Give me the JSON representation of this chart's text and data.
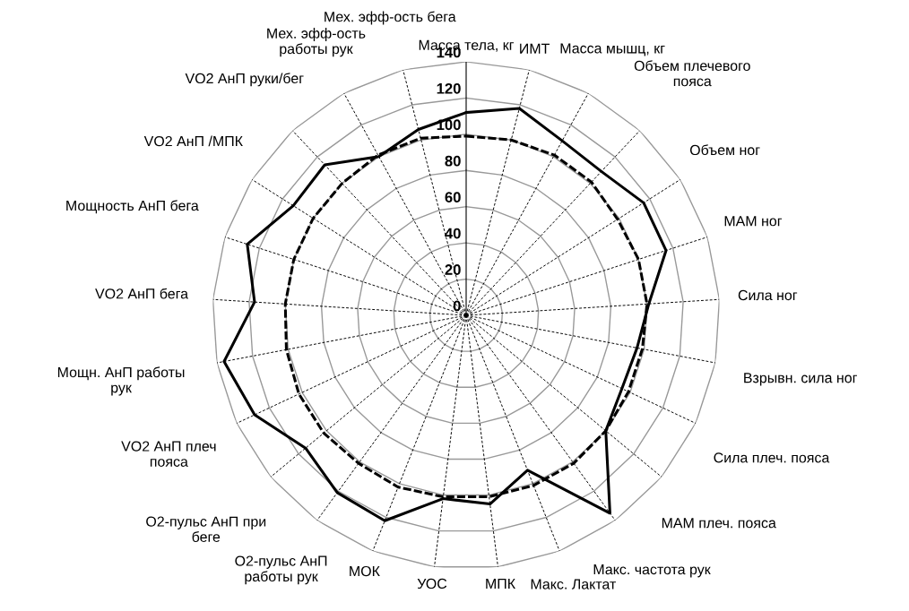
{
  "chart_data": {
    "type": "radar",
    "categories": [
      "Масса тела, кг",
      "ИМТ",
      "Масса мышц, кг",
      "Объем плечевого\nпояса",
      "Объем ног",
      "МАМ ног",
      "Сила ног",
      "Взрывн. сила ног",
      "Сила плеч. пояса",
      "МАМ плеч. пояса",
      "Макс. частота рук",
      "Макс. Лактат",
      "МПК",
      "УОС",
      "МОК",
      "О2-пульс АнП\nработы рук",
      "О2-пульс АнП при\nбеге",
      "VO2 АнП плеч\nпояса",
      "Мощн. АнП работы\nрук",
      "VO2 АнП бега",
      "Мощность АнП бега",
      "VO2 АнП /МПК",
      "VO2 АнП руки/бег",
      "Мех. эфф-ость\nработы рук",
      "Мех. эфф-ость бега"
    ],
    "series": [
      {
        "color": "#000000",
        "line_style": "solid",
        "values": [
          112,
          118,
          110,
          109,
          116,
          116,
          101,
          96,
          95,
          100,
          135,
          92,
          105,
          102,
          122,
          121,
          115,
          129,
          136,
          117,
          127,
          113,
          114,
          100,
          106
        ]
      },
      {
        "color": "#000000",
        "line_style": "dashed",
        "values": [
          99,
          100,
          101,
          101,
          99,
          100,
          100,
          99,
          99,
          100,
          101,
          101,
          101,
          101,
          102,
          101,
          102,
          102,
          101,
          100,
          100,
          100,
          100,
          101,
          101
        ]
      }
    ],
    "ylim": [
      0,
      140
    ],
    "yticks": [
      0,
      20,
      40,
      60,
      80,
      100,
      120,
      140
    ],
    "grid": true,
    "marker": "none"
  }
}
